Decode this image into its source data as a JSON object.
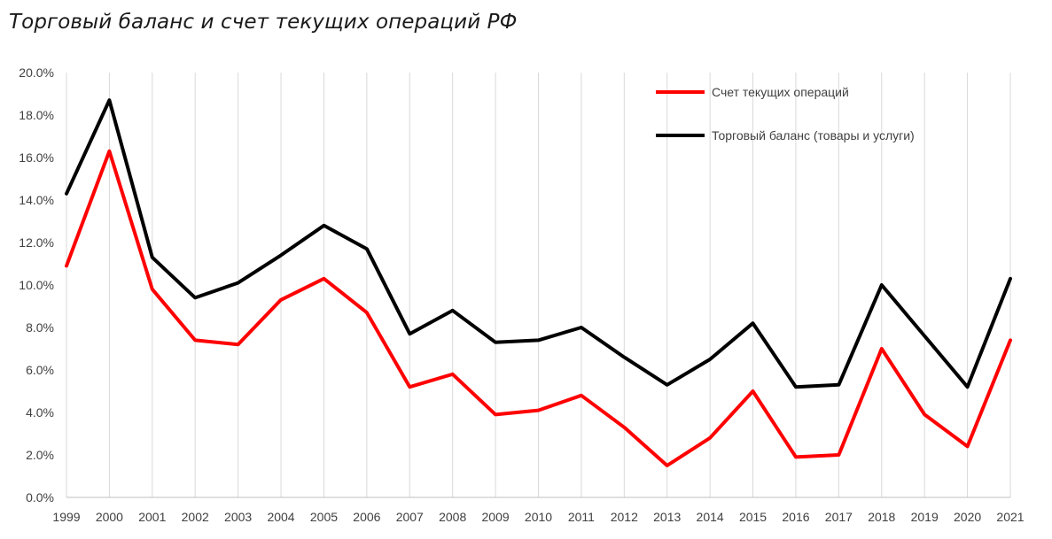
{
  "chart_data": {
    "type": "line",
    "title": "Торговый баланс и счет текущих операций РФ",
    "xlabel": "",
    "ylabel": "",
    "ylim": [
      0,
      20
    ],
    "y_ticks": [
      "0.0%",
      "2.0%",
      "4.0%",
      "6.0%",
      "8.0%",
      "10.0%",
      "12.0%",
      "14.0%",
      "16.0%",
      "18.0%",
      "20.0%"
    ],
    "grid": "vertical",
    "legend_position": "top-right",
    "categories": [
      "1999",
      "2000",
      "2001",
      "2002",
      "2003",
      "2004",
      "2005",
      "2006",
      "2007",
      "2008",
      "2009",
      "2010",
      "2011",
      "2012",
      "2013",
      "2014",
      "2015",
      "2016",
      "2017",
      "2018",
      "2019",
      "2020",
      "2021"
    ],
    "series": [
      {
        "name": "Счет текущих операций",
        "color": "#ff0000",
        "values": [
          10.9,
          16.3,
          9.8,
          7.4,
          7.2,
          9.3,
          10.3,
          8.7,
          5.2,
          5.8,
          3.9,
          4.1,
          4.8,
          3.3,
          1.5,
          2.8,
          5.0,
          1.9,
          2.0,
          7.0,
          3.9,
          2.4,
          7.4
        ]
      },
      {
        "name": "Торговый баланс (товары и услуги)",
        "color": "#000000",
        "values": [
          14.3,
          18.7,
          11.3,
          9.4,
          10.1,
          11.4,
          12.8,
          11.7,
          7.7,
          8.8,
          7.3,
          7.4,
          8.0,
          6.6,
          5.3,
          6.5,
          8.2,
          5.2,
          5.3,
          10.0,
          7.6,
          5.2,
          10.3
        ]
      }
    ]
  }
}
